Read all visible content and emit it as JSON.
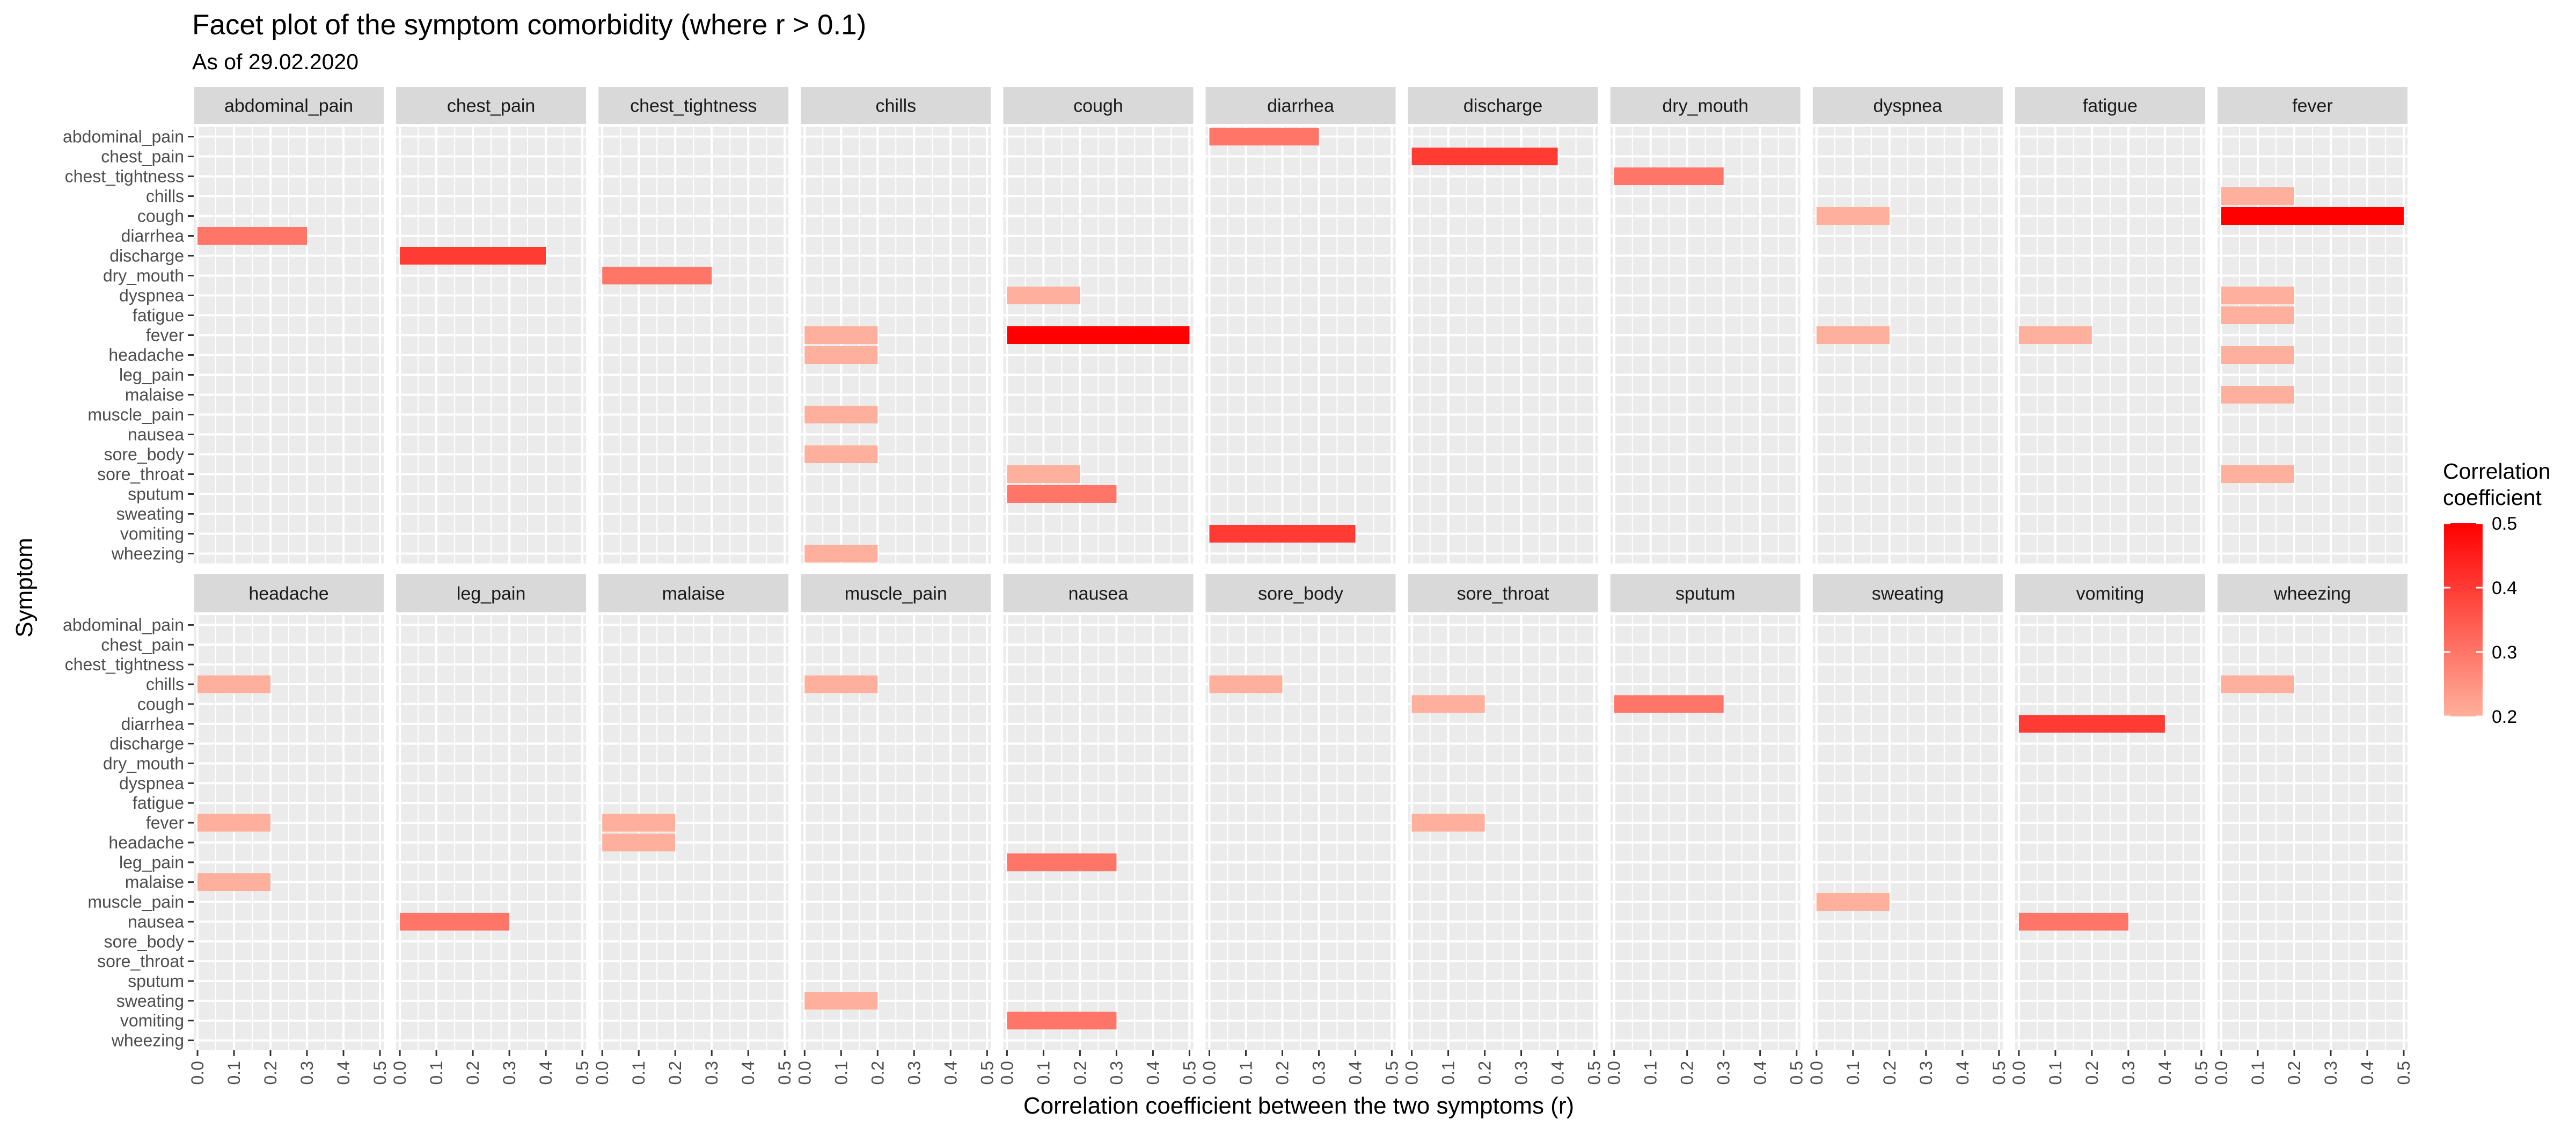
{
  "chart_data": {
    "type": "bar",
    "orientation": "horizontal",
    "facet": "wrap",
    "title": "Facet plot of the symptom comorbidity (where r > 0.1)",
    "subtitle": "As of 29.02.2020",
    "xlabel": "Correlation coefficient between the two symptoms (r)",
    "ylabel": "Symptom",
    "xlim": [
      0,
      0.5
    ],
    "x_ticks": [
      "0.0",
      "0.1",
      "0.2",
      "0.3",
      "0.4",
      "0.5"
    ],
    "grid": true,
    "symptoms": [
      "abdominal_pain",
      "chest_pain",
      "chest_tightness",
      "chills",
      "cough",
      "diarrhea",
      "discharge",
      "dry_mouth",
      "dyspnea",
      "fatigue",
      "fever",
      "headache",
      "leg_pain",
      "malaise",
      "muscle_pain",
      "nausea",
      "sore_body",
      "sore_throat",
      "sputum",
      "sweating",
      "vomiting",
      "wheezing"
    ],
    "legend": {
      "title": "Correlation\ncoefficient",
      "position": "right",
      "range": [
        0.2,
        0.5
      ],
      "ticks": [
        "0.5",
        "0.4",
        "0.3",
        "0.2"
      ],
      "low_color": "#FFB09C",
      "high_color": "#FF0000"
    },
    "facets": [
      {
        "name": "abdominal_pain",
        "bars": [
          {
            "symptom": "diarrhea",
            "r": 0.3
          }
        ]
      },
      {
        "name": "chest_pain",
        "bars": [
          {
            "symptom": "discharge",
            "r": 0.4
          }
        ]
      },
      {
        "name": "chest_tightness",
        "bars": [
          {
            "symptom": "dry_mouth",
            "r": 0.3
          }
        ]
      },
      {
        "name": "chills",
        "bars": [
          {
            "symptom": "fever",
            "r": 0.2
          },
          {
            "symptom": "headache",
            "r": 0.2
          },
          {
            "symptom": "muscle_pain",
            "r": 0.2
          },
          {
            "symptom": "sore_body",
            "r": 0.2
          },
          {
            "symptom": "wheezing",
            "r": 0.2
          }
        ]
      },
      {
        "name": "cough",
        "bars": [
          {
            "symptom": "dyspnea",
            "r": 0.2
          },
          {
            "symptom": "fever",
            "r": 0.5
          },
          {
            "symptom": "sore_throat",
            "r": 0.2
          },
          {
            "symptom": "sputum",
            "r": 0.3
          }
        ]
      },
      {
        "name": "diarrhea",
        "bars": [
          {
            "symptom": "abdominal_pain",
            "r": 0.3
          },
          {
            "symptom": "vomiting",
            "r": 0.4
          }
        ]
      },
      {
        "name": "discharge",
        "bars": [
          {
            "symptom": "chest_pain",
            "r": 0.4
          }
        ]
      },
      {
        "name": "dry_mouth",
        "bars": [
          {
            "symptom": "chest_tightness",
            "r": 0.3
          }
        ]
      },
      {
        "name": "dyspnea",
        "bars": [
          {
            "symptom": "cough",
            "r": 0.2
          },
          {
            "symptom": "fever",
            "r": 0.2
          }
        ]
      },
      {
        "name": "fatigue",
        "bars": [
          {
            "symptom": "fever",
            "r": 0.2
          }
        ]
      },
      {
        "name": "fever",
        "bars": [
          {
            "symptom": "chills",
            "r": 0.2
          },
          {
            "symptom": "cough",
            "r": 0.5
          },
          {
            "symptom": "dyspnea",
            "r": 0.2
          },
          {
            "symptom": "fatigue",
            "r": 0.2
          },
          {
            "symptom": "headache",
            "r": 0.2
          },
          {
            "symptom": "malaise",
            "r": 0.2
          },
          {
            "symptom": "sore_throat",
            "r": 0.2
          }
        ]
      },
      {
        "name": "headache",
        "bars": [
          {
            "symptom": "chills",
            "r": 0.2
          },
          {
            "symptom": "fever",
            "r": 0.2
          },
          {
            "symptom": "malaise",
            "r": 0.2
          }
        ]
      },
      {
        "name": "leg_pain",
        "bars": [
          {
            "symptom": "nausea",
            "r": 0.3
          }
        ]
      },
      {
        "name": "malaise",
        "bars": [
          {
            "symptom": "fever",
            "r": 0.2
          },
          {
            "symptom": "headache",
            "r": 0.2
          }
        ]
      },
      {
        "name": "muscle_pain",
        "bars": [
          {
            "symptom": "chills",
            "r": 0.2
          },
          {
            "symptom": "sweating",
            "r": 0.2
          }
        ]
      },
      {
        "name": "nausea",
        "bars": [
          {
            "symptom": "leg_pain",
            "r": 0.3
          },
          {
            "symptom": "vomiting",
            "r": 0.3
          }
        ]
      },
      {
        "name": "sore_body",
        "bars": [
          {
            "symptom": "chills",
            "r": 0.2
          }
        ]
      },
      {
        "name": "sore_throat",
        "bars": [
          {
            "symptom": "cough",
            "r": 0.2
          },
          {
            "symptom": "fever",
            "r": 0.2
          }
        ]
      },
      {
        "name": "sputum",
        "bars": [
          {
            "symptom": "cough",
            "r": 0.3
          }
        ]
      },
      {
        "name": "sweating",
        "bars": [
          {
            "symptom": "muscle_pain",
            "r": 0.2
          }
        ]
      },
      {
        "name": "vomiting",
        "bars": [
          {
            "symptom": "diarrhea",
            "r": 0.4
          },
          {
            "symptom": "nausea",
            "r": 0.3
          }
        ]
      },
      {
        "name": "wheezing",
        "bars": [
          {
            "symptom": "chills",
            "r": 0.2
          }
        ]
      }
    ]
  }
}
